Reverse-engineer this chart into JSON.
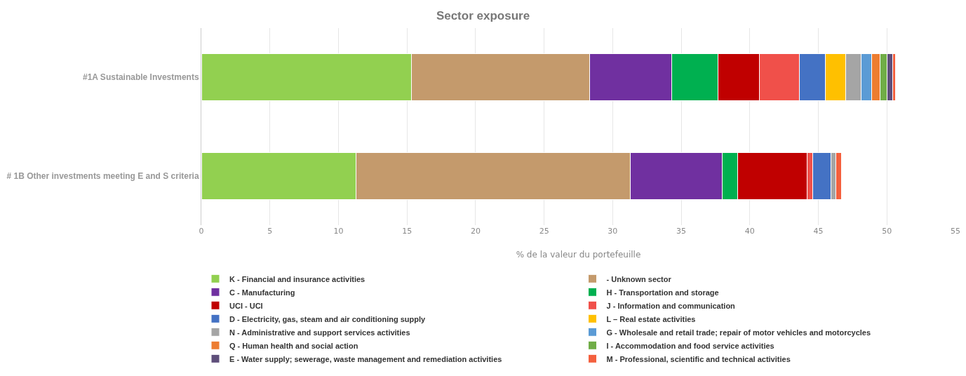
{
  "chart_data": {
    "type": "bar",
    "title": "Sector exposure",
    "orientation": "horizontal",
    "stacked": true,
    "categories": [
      "#1A Sustainable Investments",
      "# 1B Other investments meeting E and S criteria"
    ],
    "xlabel": "% de la valeur du portefeuille",
    "xlim": [
      0,
      55
    ],
    "xticks": [
      0,
      5,
      10,
      15,
      20,
      25,
      30,
      35,
      40,
      45,
      50,
      55
    ],
    "grid": "x",
    "legend": "bottom",
    "series": [
      {
        "name": "K - Financial and insurance activities",
        "color": "#92d050",
        "values": [
          15.3,
          11.3
        ]
      },
      {
        "name": "- Unknown sector",
        "color": "#c49a6c",
        "values": [
          13.0,
          20.0
        ]
      },
      {
        "name": "C - Manufacturing",
        "color": "#7030a0",
        "values": [
          6.0,
          6.7
        ]
      },
      {
        "name": "H - Transportation and storage",
        "color": "#00b050",
        "values": [
          3.4,
          1.1
        ]
      },
      {
        "name": "UCI - UCI",
        "color": "#c00000",
        "values": [
          3.0,
          5.1
        ]
      },
      {
        "name": "J - Information and communication",
        "color": "#f0504a",
        "values": [
          2.9,
          0.4
        ]
      },
      {
        "name": "D - Electricity, gas, steam and air conditioning supply",
        "color": "#4472c4",
        "values": [
          1.9,
          1.3
        ]
      },
      {
        "name": "L – Real estate activities",
        "color": "#ffc000",
        "values": [
          1.5,
          null
        ]
      },
      {
        "name": "N - Administrative and support services activities",
        "color": "#a5a5a5",
        "values": [
          1.1,
          0.4
        ]
      },
      {
        "name": "G - Wholesale and retail trade; repair of motor vehicles and motorcycles",
        "color": "#5b9bd5",
        "values": [
          0.8,
          null
        ]
      },
      {
        "name": "Q - Human health and social action",
        "color": "#ed7d31",
        "values": [
          0.6,
          null
        ]
      },
      {
        "name": "I - Accommodation and food service activities",
        "color": "#70ad47",
        "values": [
          0.5,
          null
        ]
      },
      {
        "name": "E - Water supply; sewerage, waste management and remediation activities",
        "color": "#5e4e7a",
        "values": [
          0.4,
          null
        ]
      },
      {
        "name": "M - Professional, scientific and technical activities",
        "color": "#f4603e",
        "values": [
          0.2,
          0.4
        ]
      }
    ]
  }
}
